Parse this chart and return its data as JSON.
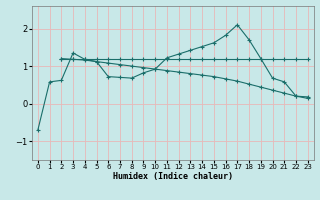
{
  "xlabel": "Humidex (Indice chaleur)",
  "xlim": [
    -0.5,
    23.5
  ],
  "ylim": [
    -1.5,
    2.6
  ],
  "yticks": [
    -1,
    0,
    1,
    2
  ],
  "xticks": [
    0,
    1,
    2,
    3,
    4,
    5,
    6,
    7,
    8,
    9,
    10,
    11,
    12,
    13,
    14,
    15,
    16,
    17,
    18,
    19,
    20,
    21,
    22,
    23
  ],
  "bg_color": "#c8e8e8",
  "grid_color": "#e8b8b8",
  "line_color": "#1a6e6a",
  "line1_x": [
    0,
    1,
    2,
    3,
    4,
    5,
    6,
    7,
    8,
    9,
    10,
    11,
    12,
    13,
    14,
    15,
    16,
    17,
    18,
    19,
    20,
    21,
    22,
    23
  ],
  "line1_y": [
    -0.7,
    0.58,
    0.62,
    1.35,
    1.18,
    1.12,
    0.72,
    0.7,
    0.68,
    0.82,
    0.92,
    1.22,
    1.32,
    1.42,
    1.52,
    1.62,
    1.82,
    2.1,
    1.7,
    1.2,
    0.68,
    0.58,
    0.2,
    0.18
  ],
  "line2_x": [
    2,
    3,
    4,
    5,
    6,
    7,
    8,
    9,
    10,
    11,
    12,
    13,
    14,
    15,
    16,
    17,
    18,
    19,
    20,
    21,
    22,
    23
  ],
  "line2_y": [
    1.2,
    1.2,
    1.2,
    1.2,
    1.2,
    1.2,
    1.2,
    1.2,
    1.2,
    1.2,
    1.2,
    1.2,
    1.2,
    1.2,
    1.2,
    1.2,
    1.2,
    1.2,
    1.2,
    1.2,
    1.2,
    1.2
  ],
  "line3_x": [
    2,
    3,
    4,
    5,
    6,
    7,
    8,
    9,
    10,
    11,
    12,
    13,
    14,
    15,
    16,
    17,
    18,
    19,
    20,
    21,
    22,
    23
  ],
  "line3_y": [
    1.2,
    1.18,
    1.16,
    1.12,
    1.08,
    1.04,
    1.0,
    0.96,
    0.92,
    0.88,
    0.84,
    0.8,
    0.76,
    0.72,
    0.66,
    0.6,
    0.52,
    0.44,
    0.36,
    0.28,
    0.2,
    0.14
  ]
}
